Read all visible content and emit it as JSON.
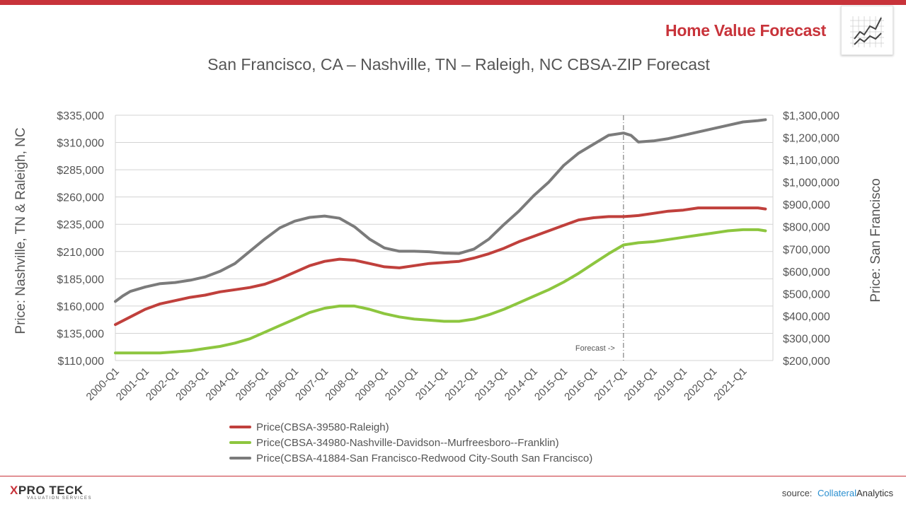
{
  "header": {
    "brand_title": "Home Value Forecast",
    "brand_icon": "line-chart-icon",
    "accent_color": "#c8333a"
  },
  "footer": {
    "logo_x": "X",
    "logo_main": "PRO TECK",
    "logo_sub": "VALUATION SERVICES",
    "source_label": "source:",
    "source_brand": "Collateral",
    "source_brand2": "Analytics"
  },
  "chart_data": {
    "type": "line",
    "title": "San Francisco, CA – Nashville, TN – Raleigh, NC CBSA-ZIP Forecast",
    "ylabel_left": "Price: Nashville, TN & Raleigh, NC",
    "ylabel_right": "Price: San Francisco",
    "ylim_left": [
      110000,
      335000
    ],
    "yticks_left": [
      "$110,000",
      "$135,000",
      "$160,000",
      "$185,000",
      "$210,000",
      "$235,000",
      "$260,000",
      "$285,000",
      "$310,000",
      "$335,000"
    ],
    "ylim_right": [
      200000,
      1300000
    ],
    "yticks_right": [
      "$200,000",
      "$300,000",
      "$400,000",
      "$500,000",
      "$600,000",
      "$700,000",
      "$800,000",
      "$900,000",
      "$1,000,000",
      "$1,100,000",
      "$1,200,000",
      "$1,300,000"
    ],
    "xlim": [
      2000,
      2022
    ],
    "xticks": [
      "2000-Q1",
      "2001-Q1",
      "2002-Q1",
      "2003-Q1",
      "2004-Q1",
      "2005-Q1",
      "2006-Q1",
      "2007-Q1",
      "2008-Q1",
      "2009-Q1",
      "2010-Q1",
      "2011-Q1",
      "2012-Q1",
      "2013-Q1",
      "2014-Q1",
      "2015-Q1",
      "2016-Q1",
      "2017-Q1",
      "2018-Q1",
      "2019-Q1",
      "2020-Q1",
      "2021-Q1"
    ],
    "forecast_label": "Forecast ->",
    "forecast_start": 2017,
    "grid": true,
    "legend_position": "bottom",
    "series": [
      {
        "name": "Price(CBSA-39580-Raleigh)",
        "axis": "left",
        "color": "#c0403c",
        "x": [
          2000,
          2000.5,
          2001,
          2001.5,
          2002,
          2002.5,
          2003,
          2003.5,
          2004,
          2004.5,
          2005,
          2005.5,
          2006,
          2006.5,
          2007,
          2007.5,
          2008,
          2008.5,
          2009,
          2009.5,
          2010,
          2010.5,
          2011,
          2011.5,
          2012,
          2012.5,
          2013,
          2013.5,
          2014,
          2014.5,
          2015,
          2015.5,
          2016,
          2016.5,
          2017,
          2017.5,
          2018,
          2018.5,
          2019,
          2019.5,
          2020,
          2020.5,
          2021,
          2021.5,
          2021.75
        ],
        "values": [
          143000,
          150000,
          157000,
          162000,
          165000,
          168000,
          170000,
          173000,
          175000,
          177000,
          180000,
          185000,
          191000,
          197000,
          201000,
          203000,
          202000,
          199000,
          196000,
          195000,
          197000,
          199000,
          200000,
          201000,
          204000,
          208000,
          213000,
          219000,
          224000,
          229000,
          234000,
          239000,
          241000,
          242000,
          242000,
          243000,
          245000,
          247000,
          248000,
          250000,
          250000,
          250000,
          250000,
          250000,
          249000
        ]
      },
      {
        "name": "Price(CBSA-34980-Nashville-Davidson--Murfreesboro--Franklin)",
        "axis": "left",
        "color": "#8dc63f",
        "x": [
          2000,
          2000.5,
          2001,
          2001.5,
          2002,
          2002.5,
          2003,
          2003.5,
          2004,
          2004.5,
          2005,
          2005.5,
          2006,
          2006.5,
          2007,
          2007.5,
          2008,
          2008.5,
          2009,
          2009.5,
          2010,
          2010.5,
          2011,
          2011.5,
          2012,
          2012.5,
          2013,
          2013.5,
          2014,
          2014.5,
          2015,
          2015.5,
          2016,
          2016.5,
          2017,
          2017.5,
          2018,
          2018.5,
          2019,
          2019.5,
          2020,
          2020.5,
          2021,
          2021.5,
          2021.75
        ],
        "values": [
          117000,
          117000,
          117000,
          117000,
          118000,
          119000,
          121000,
          123000,
          126000,
          130000,
          136000,
          142000,
          148000,
          154000,
          158000,
          160000,
          160000,
          157000,
          153000,
          150000,
          148000,
          147000,
          146000,
          146000,
          148000,
          152000,
          157000,
          163000,
          169000,
          175000,
          182000,
          190000,
          199000,
          208000,
          216000,
          218000,
          219000,
          221000,
          223000,
          225000,
          227000,
          229000,
          230000,
          230000,
          229000
        ]
      },
      {
        "name": "Price(CBSA-41884-San Francisco-Redwood City-South San Francisco)",
        "axis": "right",
        "color": "#7b7b7b",
        "x": [
          2000,
          2000.25,
          2000.5,
          2001,
          2001.5,
          2002,
          2002.5,
          2003,
          2003.5,
          2004,
          2004.5,
          2005,
          2005.5,
          2006,
          2006.5,
          2007,
          2007.5,
          2008,
          2008.5,
          2009,
          2009.5,
          2010,
          2010.5,
          2011,
          2011.5,
          2012,
          2012.5,
          2013,
          2013.5,
          2014,
          2014.5,
          2015,
          2015.5,
          2016,
          2016.5,
          2017,
          2017.25,
          2017.5,
          2018,
          2018.5,
          2019,
          2019.5,
          2020,
          2020.5,
          2021,
          2021.5,
          2021.75
        ],
        "values": [
          465000,
          490000,
          510000,
          530000,
          545000,
          550000,
          560000,
          575000,
          600000,
          635000,
          690000,
          745000,
          795000,
          825000,
          842000,
          848000,
          838000,
          800000,
          745000,
          705000,
          690000,
          690000,
          688000,
          682000,
          680000,
          700000,
          745000,
          810000,
          870000,
          940000,
          1000000,
          1075000,
          1130000,
          1170000,
          1210000,
          1220000,
          1210000,
          1180000,
          1185000,
          1195000,
          1210000,
          1225000,
          1240000,
          1255000,
          1270000,
          1276000,
          1280000
        ]
      }
    ]
  }
}
